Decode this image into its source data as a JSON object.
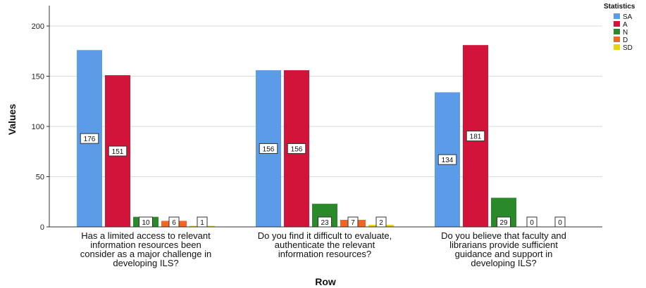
{
  "chart_data": {
    "type": "bar",
    "title": "",
    "xlabel": "Row",
    "ylabel": "Values",
    "ylim": [
      0,
      210
    ],
    "yticks": [
      0,
      50,
      100,
      150,
      200
    ],
    "grid": true,
    "legend_title": "Statistics",
    "legend_position": "top-right",
    "categories": [
      [
        "Has a limited access to relevant",
        "information resources been",
        "consider as a major challenge in",
        "developing ILS?"
      ],
      [
        "Do you find it difficult to evaluate,",
        "authenticate the relevant",
        "information resources?"
      ],
      [
        "Do you believe that faculty and",
        "librarians provide sufficient",
        "guidance and support in",
        "developing ILS?"
      ]
    ],
    "series": [
      {
        "name": "SA",
        "color": "#5b9be8",
        "values": [
          176,
          156,
          134
        ]
      },
      {
        "name": "A",
        "color": "#d2143a",
        "values": [
          151,
          156,
          181
        ]
      },
      {
        "name": "N",
        "color": "#2a8a2a",
        "values": [
          10,
          23,
          29
        ]
      },
      {
        "name": "D",
        "color": "#f26522",
        "values": [
          6,
          7,
          0
        ]
      },
      {
        "name": "SD",
        "color": "#e8d40a",
        "values": [
          1,
          2,
          0
        ]
      }
    ]
  }
}
